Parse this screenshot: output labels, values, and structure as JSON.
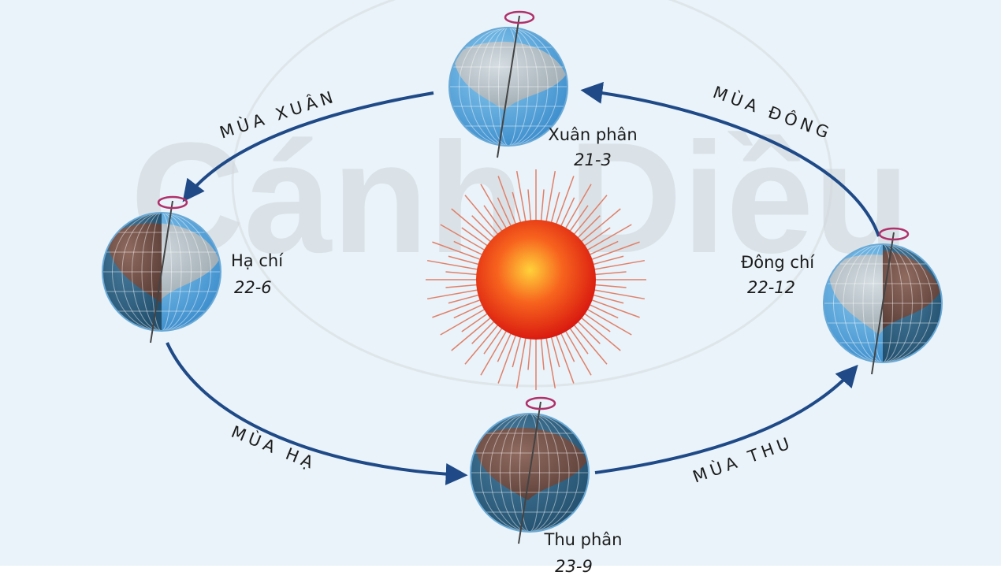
{
  "watermark": "Cánh Diều",
  "seasons": {
    "spring": "MÙA XUÂN",
    "winter": "MÙA ĐÔNG",
    "summer": "MÙA HẠ",
    "autumn": "MÙA THU"
  },
  "positions": [
    {
      "name": "Xuân phân",
      "date": "21-3"
    },
    {
      "name": "Hạ chí",
      "date": "22-6"
    },
    {
      "name": "Đông chí",
      "date": "22-12"
    },
    {
      "name": "Thu phân",
      "date": "23-9"
    }
  ]
}
